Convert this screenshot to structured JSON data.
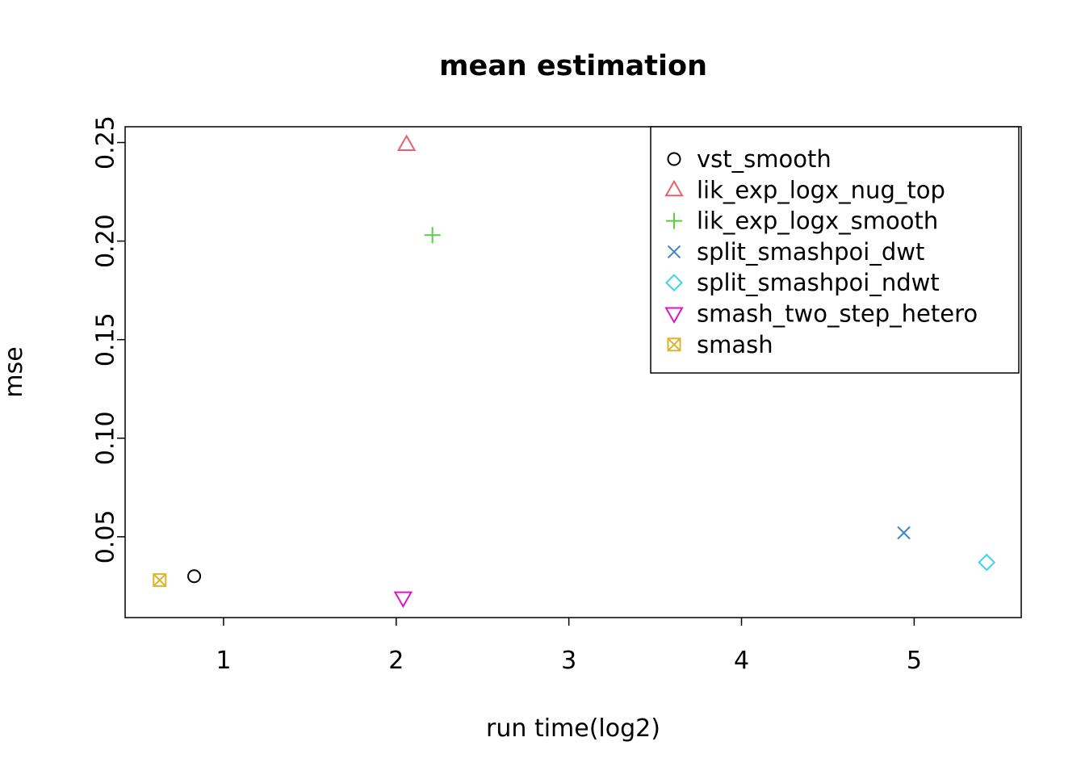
{
  "page": {
    "background": "#ffffff"
  },
  "chart_data": {
    "type": "scatter",
    "title": "mean estimation",
    "xlabel": "run time(log2)",
    "ylabel": "mse",
    "xlim": [
      0.43,
      5.62
    ],
    "ylim": [
      0.009,
      0.258
    ],
    "xticks": [
      1,
      2,
      3,
      4,
      5
    ],
    "xtick_labels": [
      "1",
      "2",
      "3",
      "4",
      "5"
    ],
    "yticks": [
      0.05,
      0.1,
      0.15,
      0.2,
      0.25
    ],
    "ytick_labels": [
      "0.05",
      "0.10",
      "0.15",
      "0.20",
      "0.25"
    ],
    "grid": false,
    "legend_position": "top-right",
    "frame_color": "#000000",
    "series": [
      {
        "name": "vst_smooth",
        "marker": "circle",
        "color": "#000000",
        "points": [
          [
            0.83,
            0.03
          ]
        ]
      },
      {
        "name": "lik_exp_logx_nug_top",
        "marker": "triangle-up",
        "color": "#e8606e",
        "points": [
          [
            2.06,
            0.249
          ]
        ]
      },
      {
        "name": "lik_exp_logx_smooth",
        "marker": "plus",
        "color": "#5ecb46",
        "points": [
          [
            2.21,
            0.203
          ]
        ]
      },
      {
        "name": "split_smashpoi_dwt",
        "marker": "x",
        "color": "#3d85c8",
        "points": [
          [
            4.94,
            0.052
          ]
        ]
      },
      {
        "name": "split_smashpoi_ndwt",
        "marker": "diamond",
        "color": "#40d6e6",
        "points": [
          [
            5.42,
            0.037
          ]
        ]
      },
      {
        "name": "smash_two_step_hetero",
        "marker": "triangle-down",
        "color": "#d916c2",
        "points": [
          [
            2.04,
            0.019
          ]
        ]
      },
      {
        "name": "smash",
        "marker": "square-x",
        "color": "#dfb32a",
        "points": [
          [
            0.63,
            0.028
          ]
        ]
      }
    ]
  }
}
